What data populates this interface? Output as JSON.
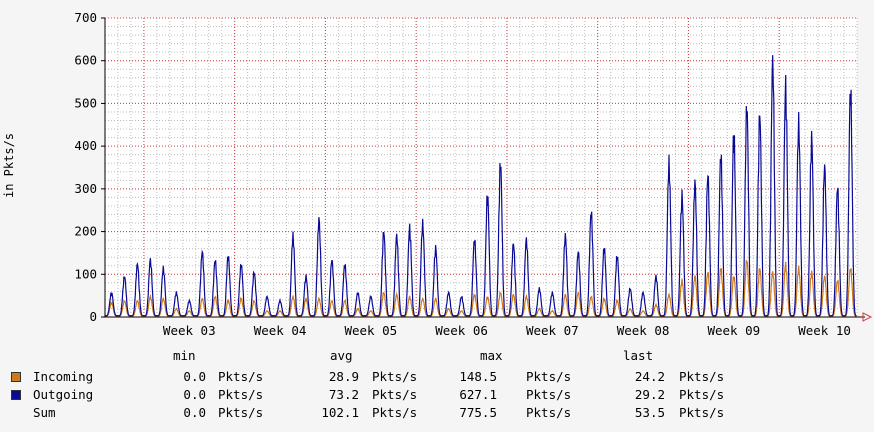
{
  "chart_data": {
    "type": "line",
    "ylabel": "in Pkts/s",
    "ylim": [
      0,
      700
    ],
    "yticks": [
      0,
      100,
      200,
      300,
      400,
      500,
      600,
      700
    ],
    "x_ticks": [
      "Week 03",
      "Week 04",
      "Week 05",
      "Week 06",
      "Week 07",
      "Week 08",
      "Week 09",
      "Week 10"
    ],
    "grid": true,
    "days": 58,
    "series": [
      {
        "name": "Incoming",
        "color": "#cc7a1a",
        "daily_peaks": [
          35,
          40,
          40,
          50,
          45,
          20,
          15,
          45,
          50,
          40,
          45,
          40,
          15,
          15,
          50,
          45,
          45,
          40,
          40,
          20,
          15,
          60,
          55,
          50,
          45,
          45,
          20,
          15,
          55,
          50,
          60,
          55,
          50,
          20,
          15,
          55,
          60,
          50,
          45,
          40,
          20,
          15,
          30,
          55,
          90,
          100,
          110,
          120,
          100,
          140,
          120,
          110,
          130,
          120,
          110,
          100,
          90,
          120
        ]
      },
      {
        "name": "Outgoing",
        "color": "#0a0a96",
        "daily_peaks": [
          60,
          100,
          130,
          140,
          120,
          60,
          40,
          160,
          140,
          150,
          130,
          110,
          50,
          40,
          200,
          100,
          240,
          140,
          130,
          60,
          50,
          210,
          200,
          220,
          230,
          170,
          60,
          50,
          190,
          300,
          380,
          180,
          190,
          70,
          60,
          200,
          160,
          260,
          170,
          150,
          70,
          60,
          100,
          380,
          300,
          330,
          350,
          400,
          450,
          520,
          500,
          630,
          570,
          480,
          440,
          370,
          320,
          560
        ]
      }
    ]
  },
  "legend": {
    "headers": {
      "min": "min",
      "avg": "avg",
      "max": "max",
      "last": "last"
    },
    "rows": [
      {
        "name": "Incoming",
        "color": "#cc7a1a",
        "min": "0.0",
        "avg": "28.9",
        "max": "148.5",
        "last": "24.2",
        "unit": "Pkts/s"
      },
      {
        "name": "Outgoing",
        "color": "#0a0a96",
        "min": "0.0",
        "avg": "73.2",
        "max": "627.1",
        "last": "29.2",
        "unit": "Pkts/s"
      },
      {
        "name": "Sum",
        "min": "0.0",
        "avg": "102.1",
        "max": "775.5",
        "last": "53.5",
        "unit": "Pkts/s"
      }
    ]
  }
}
